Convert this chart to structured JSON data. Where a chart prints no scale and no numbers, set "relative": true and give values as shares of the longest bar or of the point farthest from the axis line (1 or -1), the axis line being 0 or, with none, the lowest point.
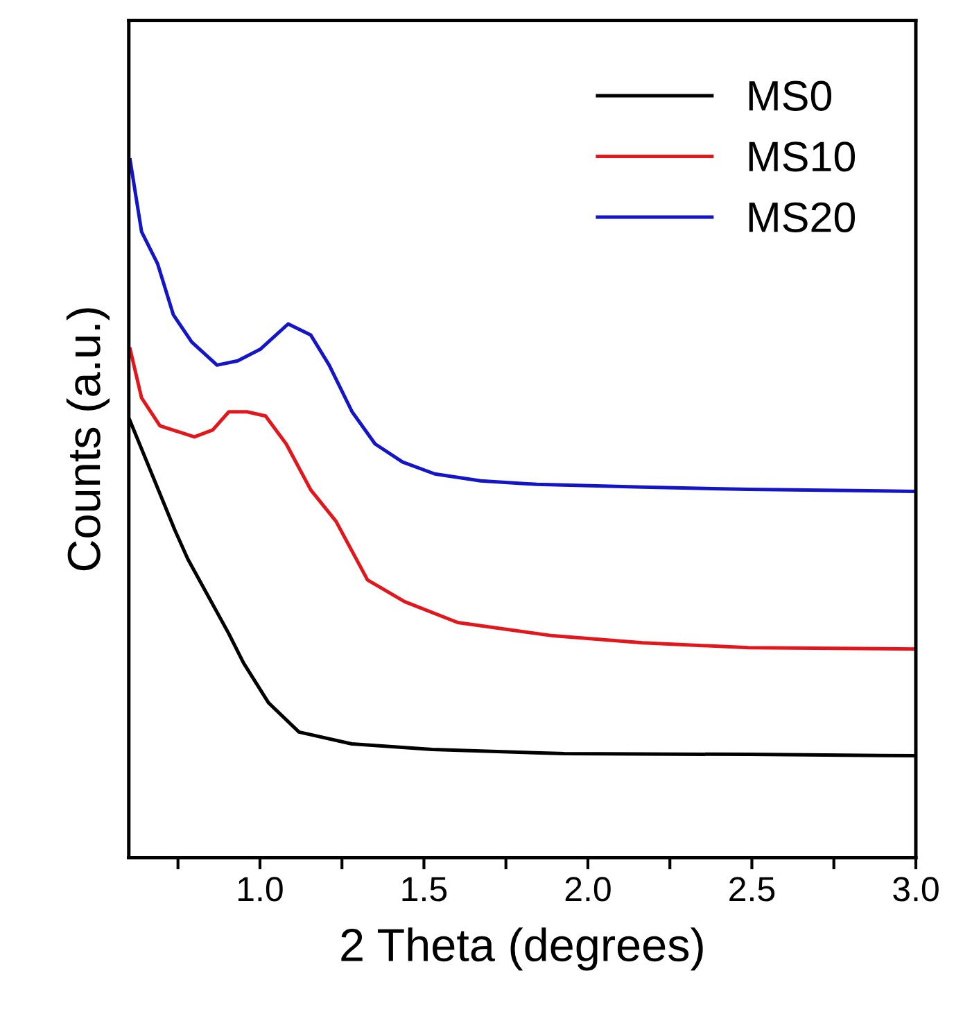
{
  "chart_data": {
    "type": "line",
    "xlabel": "2 Theta (degrees)",
    "ylabel": "Counts (a.u.)",
    "relative": true,
    "xlim": [
      0.6,
      3.0
    ],
    "xticks": [
      {
        "value": 0.75,
        "label": null
      },
      {
        "value": 1.0,
        "label": "1.0"
      },
      {
        "value": 1.25,
        "label": null
      },
      {
        "value": 1.5,
        "label": "1.5"
      },
      {
        "value": 1.75,
        "label": null
      },
      {
        "value": 2.0,
        "label": "2.0"
      },
      {
        "value": 2.25,
        "label": null
      },
      {
        "value": 2.5,
        "label": "2.5"
      },
      {
        "value": 2.75,
        "label": null
      },
      {
        "value": 3.0,
        "label": "3.0"
      }
    ],
    "legend": "top right",
    "grid": false,
    "marker": "none",
    "line_style": "solid",
    "series": [
      {
        "name": "MS0",
        "color": "#000000",
        "x": [
          0.603,
          0.74,
          0.78,
          0.905,
          0.95,
          1.026,
          1.119,
          1.28,
          1.525,
          1.928,
          2.489,
          3.0
        ],
        "values": [
          0.627,
          0.47,
          0.428,
          0.321,
          0.279,
          0.222,
          0.18,
          0.163,
          0.155,
          0.149,
          0.148,
          0.146
        ]
      },
      {
        "name": "MS10",
        "color": "#e3161c",
        "x": [
          0.604,
          0.639,
          0.695,
          0.8,
          0.856,
          0.905,
          0.961,
          1.017,
          1.08,
          1.155,
          1.232,
          1.328,
          1.441,
          1.603,
          1.893,
          2.167,
          2.489,
          3.0
        ],
        "values": [
          0.729,
          0.659,
          0.619,
          0.603,
          0.613,
          0.639,
          0.639,
          0.633,
          0.593,
          0.527,
          0.482,
          0.398,
          0.367,
          0.337,
          0.318,
          0.308,
          0.301,
          0.299
        ]
      },
      {
        "name": "MS20",
        "color": "#1414c8",
        "x": [
          0.604,
          0.639,
          0.688,
          0.736,
          0.792,
          0.869,
          0.932,
          1.002,
          1.086,
          1.155,
          1.211,
          1.281,
          1.351,
          1.435,
          1.533,
          1.673,
          1.844,
          2.167,
          2.489,
          3.0
        ],
        "values": [
          1.0,
          0.897,
          0.851,
          0.778,
          0.739,
          0.706,
          0.712,
          0.729,
          0.765,
          0.749,
          0.706,
          0.639,
          0.593,
          0.567,
          0.55,
          0.54,
          0.535,
          0.531,
          0.528,
          0.525
        ]
      }
    ]
  }
}
